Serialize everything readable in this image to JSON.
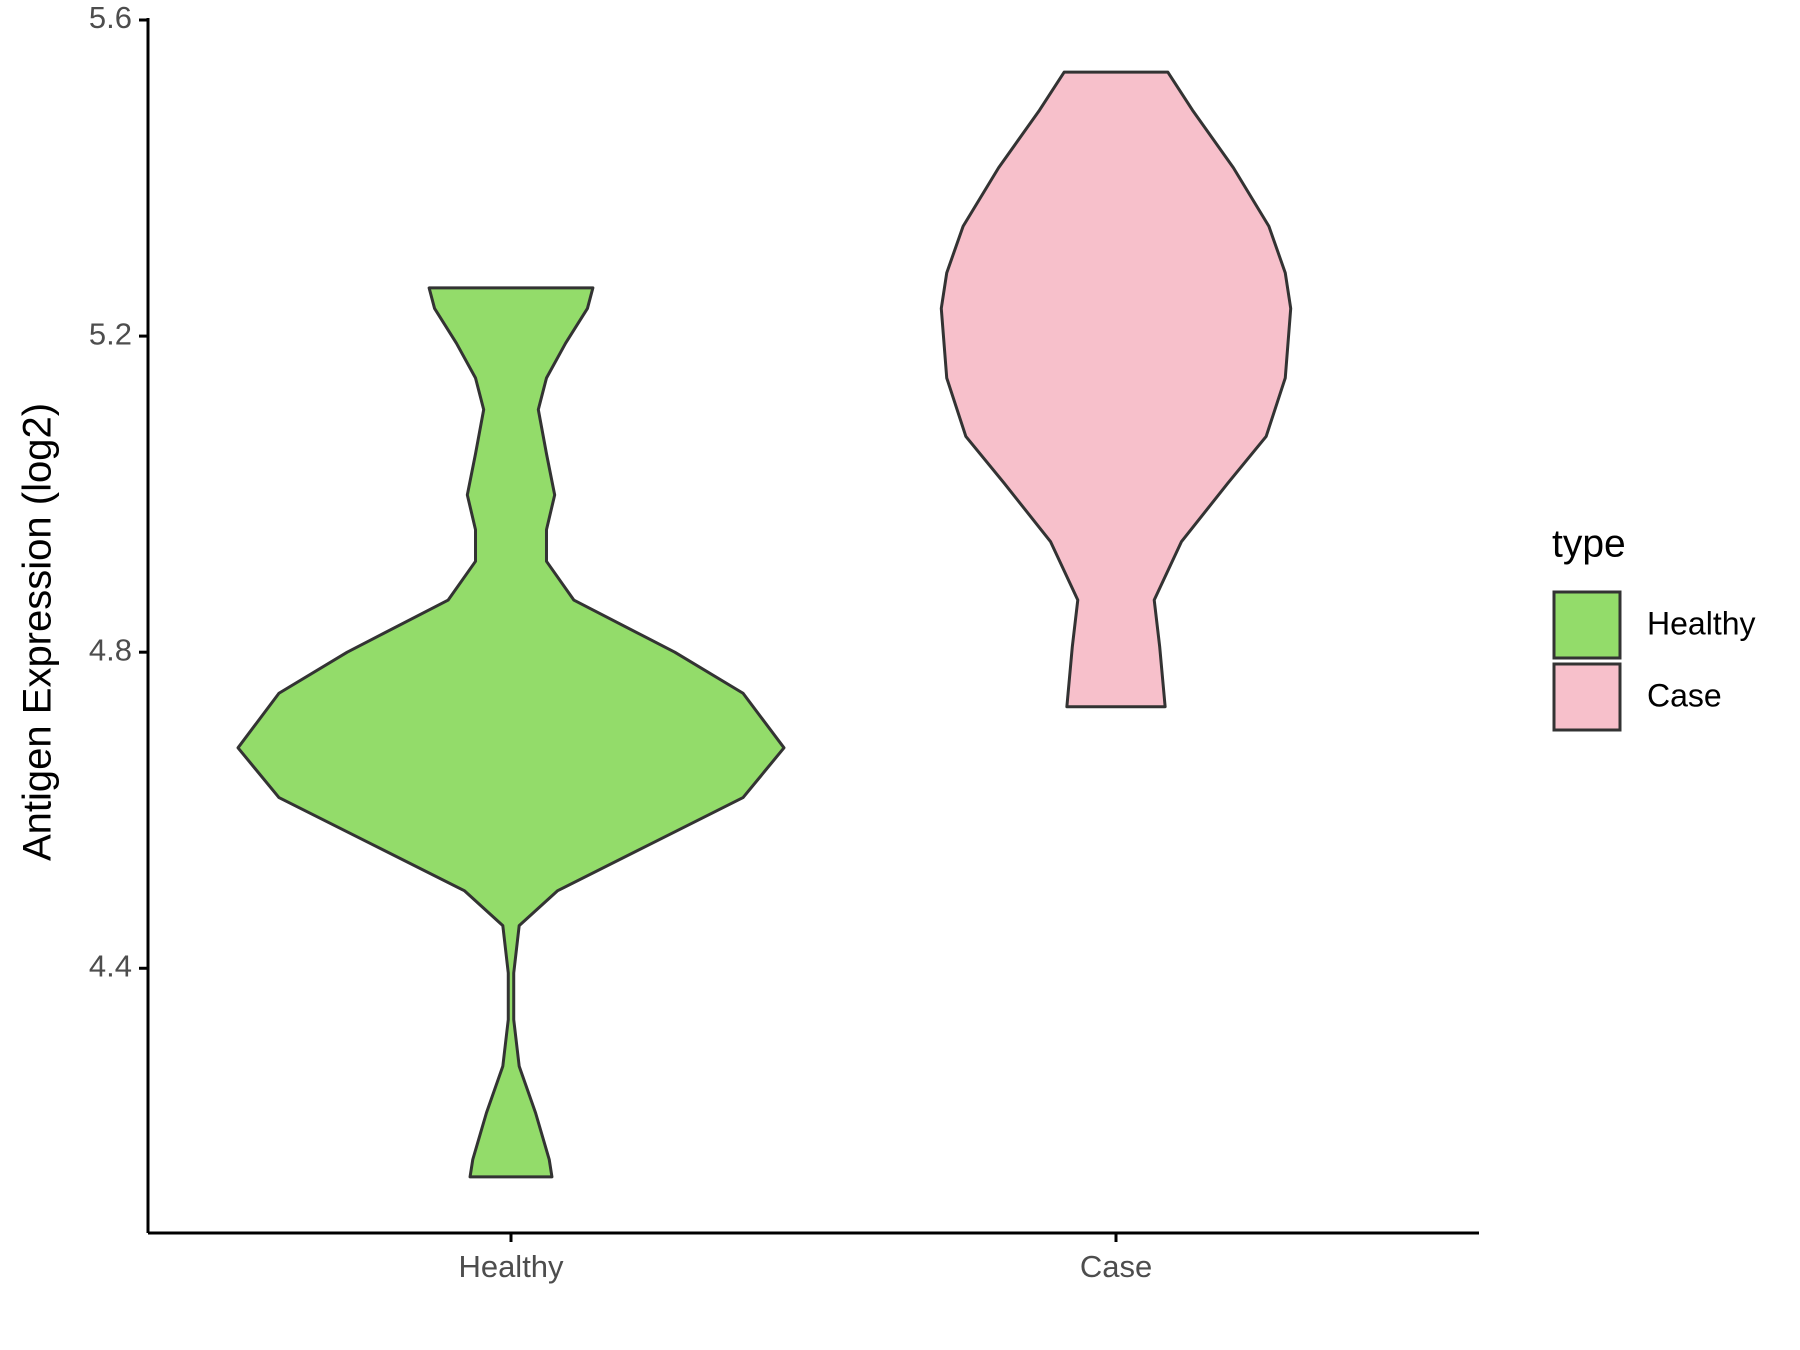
{
  "chart_data": {
    "type": "violin",
    "y_label": "Antigen Expression (log2)",
    "categories": [
      "Healthy",
      "Case"
    ],
    "ylim": [
      4.065,
      5.6
    ],
    "yticks": [
      4.4,
      4.8,
      5.2,
      5.6
    ],
    "legend_title": "type",
    "legend_position": "right",
    "series": [
      {
        "name": "Healthy",
        "color": "#93dc6a",
        "values": [
          5.261,
          5.235,
          5.191,
          5.147,
          5.107,
          5.051,
          4.999,
          4.955,
          4.915,
          4.866,
          4.8,
          4.748,
          4.679,
          4.616,
          4.557,
          4.498,
          4.454,
          4.394,
          4.335,
          4.276,
          4.217,
          4.158,
          4.136
        ],
        "widths": [
          0.3,
          0.28,
          0.2,
          0.13,
          0.1,
          0.13,
          0.16,
          0.13,
          0.13,
          0.23,
          0.6,
          0.85,
          1.0,
          0.85,
          0.51,
          0.17,
          0.03,
          0.01,
          0.01,
          0.03,
          0.09,
          0.14,
          0.15
        ]
      },
      {
        "name": "Case",
        "color": "#f7c0cb",
        "values": [
          5.534,
          5.486,
          5.413,
          5.339,
          5.28,
          5.235,
          5.147,
          5.073,
          5.014,
          4.94,
          4.866,
          4.807,
          4.731
        ],
        "widths": [
          0.19,
          0.28,
          0.43,
          0.56,
          0.62,
          0.64,
          0.62,
          0.55,
          0.41,
          0.24,
          0.14,
          0.16,
          0.18
        ]
      }
    ]
  }
}
